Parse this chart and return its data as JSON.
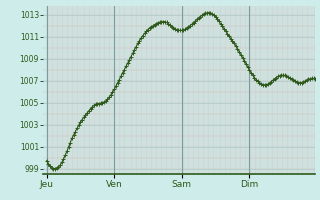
{
  "background_color": "#ceecea",
  "plot_bg_color": "#ceecea",
  "line_color": "#2d5a1b",
  "marker": "+",
  "marker_size": 2.5,
  "line_width": 0.8,
  "ylim": [
    998.5,
    1013.8
  ],
  "yticks": [
    999,
    1001,
    1003,
    1005,
    1007,
    1009,
    1011,
    1013
  ],
  "grid_color": "#aacfcc",
  "grid_color_v": "#c0dbd9",
  "xlabel_color": "#2d5a1b",
  "tick_color": "#2d5a1b",
  "day_labels": [
    "Jeu",
    "Ven",
    "Sam",
    "Dim"
  ],
  "pressure_data": [
    999.7,
    999.4,
    999.2,
    999.05,
    999.0,
    999.0,
    999.05,
    999.15,
    999.3,
    999.55,
    999.85,
    1000.2,
    1000.55,
    1000.95,
    1001.35,
    1001.75,
    1002.05,
    1002.35,
    1002.65,
    1002.95,
    1003.2,
    1003.45,
    1003.65,
    1003.85,
    1004.05,
    1004.25,
    1004.45,
    1004.6,
    1004.75,
    1004.85,
    1004.9,
    1004.92,
    1004.95,
    1005.0,
    1005.05,
    1005.15,
    1005.3,
    1005.5,
    1005.7,
    1005.95,
    1006.2,
    1006.5,
    1006.8,
    1007.1,
    1007.4,
    1007.7,
    1008.0,
    1008.3,
    1008.6,
    1008.9,
    1009.2,
    1009.5,
    1009.8,
    1010.1,
    1010.4,
    1010.65,
    1010.9,
    1011.1,
    1011.3,
    1011.5,
    1011.65,
    1011.8,
    1011.9,
    1012.0,
    1012.1,
    1012.2,
    1012.28,
    1012.33,
    1012.36,
    1012.38,
    1012.38,
    1012.3,
    1012.2,
    1012.05,
    1011.92,
    1011.8,
    1011.72,
    1011.65,
    1011.6,
    1011.58,
    1011.58,
    1011.6,
    1011.68,
    1011.78,
    1011.9,
    1012.02,
    1012.15,
    1012.28,
    1012.42,
    1012.58,
    1012.72,
    1012.84,
    1012.94,
    1013.05,
    1013.12,
    1013.18,
    1013.2,
    1013.18,
    1013.1,
    1012.98,
    1012.82,
    1012.62,
    1012.4,
    1012.18,
    1011.95,
    1011.72,
    1011.5,
    1011.28,
    1011.06,
    1010.84,
    1010.62,
    1010.4,
    1010.18,
    1009.92,
    1009.65,
    1009.38,
    1009.1,
    1008.82,
    1008.54,
    1008.26,
    1007.98,
    1007.72,
    1007.5,
    1007.28,
    1007.1,
    1006.95,
    1006.82,
    1006.72,
    1006.65,
    1006.62,
    1006.62,
    1006.68,
    1006.78,
    1006.92,
    1007.05,
    1007.18,
    1007.28,
    1007.38,
    1007.45,
    1007.5,
    1007.5,
    1007.48,
    1007.42,
    1007.35,
    1007.25,
    1007.15,
    1007.05,
    1006.95,
    1006.88,
    1006.82,
    1006.8,
    1006.82,
    1006.88,
    1006.96,
    1007.05,
    1007.12,
    1007.18,
    1007.22,
    1007.2,
    1007.15
  ]
}
